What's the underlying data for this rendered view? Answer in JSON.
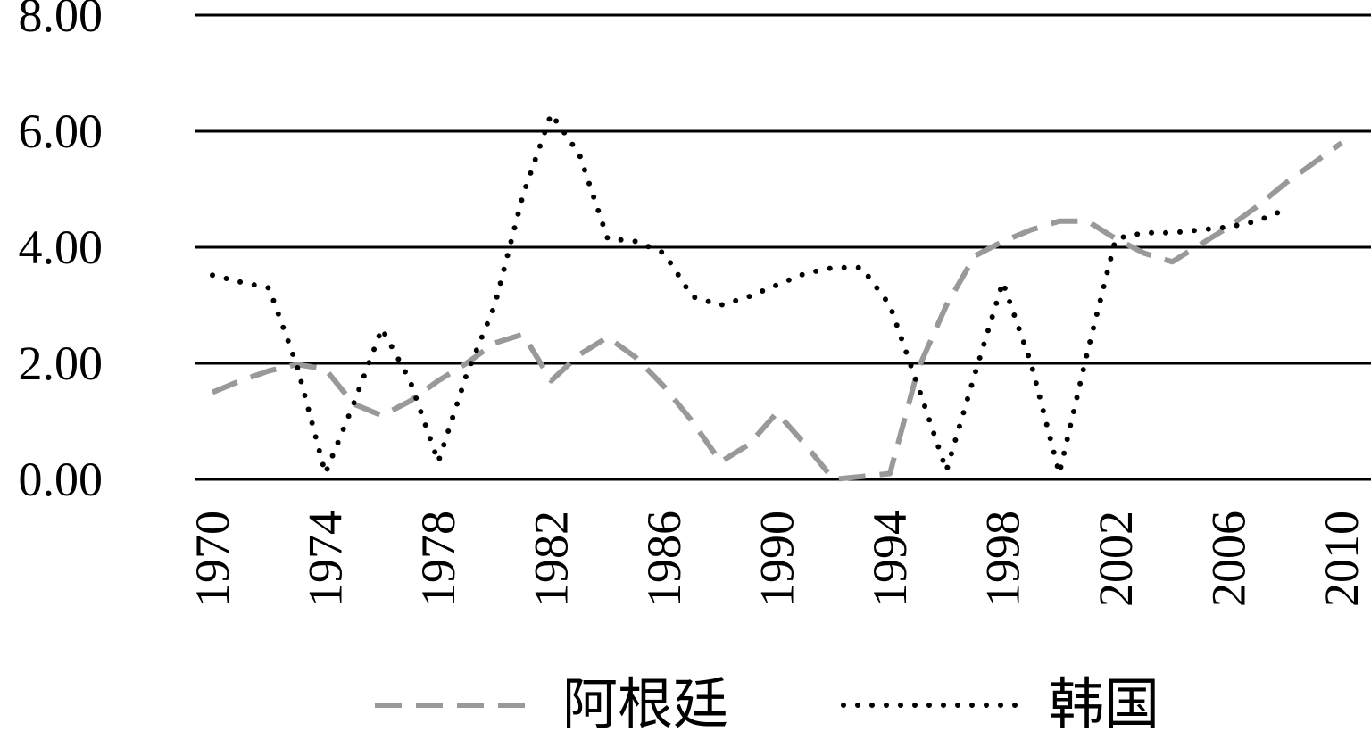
{
  "chart_data": {
    "type": "line",
    "x": [
      1970,
      1971,
      1972,
      1973,
      1974,
      1975,
      1976,
      1977,
      1978,
      1979,
      1980,
      1981,
      1982,
      1983,
      1984,
      1985,
      1986,
      1987,
      1988,
      1989,
      1990,
      1991,
      1992,
      1993,
      1994,
      1995,
      1996,
      1997,
      1998,
      1999,
      2000,
      2001,
      2002,
      2003,
      2004,
      2005,
      2006,
      2007,
      2008,
      2009,
      2010
    ],
    "series": [
      {
        "name": "阿根廷",
        "color": "#999999",
        "style": "dashed",
        "values": [
          1.5,
          1.7,
          1.87,
          1.98,
          1.9,
          1.3,
          1.1,
          1.35,
          1.7,
          2.0,
          2.35,
          2.5,
          1.7,
          2.15,
          2.45,
          2.1,
          1.6,
          1.0,
          0.3,
          0.6,
          1.15,
          0.6,
          0.0,
          0.05,
          0.1,
          1.9,
          3.0,
          3.85,
          4.1,
          4.3,
          4.45,
          4.45,
          4.15,
          3.9,
          3.75,
          4.05,
          4.35,
          4.7,
          5.1,
          5.45,
          5.8
        ]
      },
      {
        "name": "韩国",
        "color": "#000000",
        "style": "dotted",
        "values": [
          3.52,
          3.4,
          3.3,
          1.95,
          0.1,
          1.3,
          2.6,
          1.7,
          0.3,
          1.8,
          3.0,
          4.9,
          6.3,
          5.6,
          4.15,
          4.1,
          3.9,
          3.15,
          3.0,
          3.15,
          3.35,
          3.55,
          3.65,
          3.65,
          3.0,
          1.6,
          0.15,
          1.8,
          3.4,
          2.0,
          0.1,
          2.2,
          4.15,
          4.25,
          4.25,
          4.3,
          4.35,
          4.45,
          4.65,
          null,
          null
        ]
      }
    ],
    "xlim": [
      1970,
      2010
    ],
    "xticks": [
      1970,
      1974,
      1978,
      1982,
      1986,
      1990,
      1994,
      1998,
      2002,
      2006,
      2010
    ],
    "ylim": [
      0,
      8
    ],
    "yticks": [
      {
        "value": 0,
        "label": "0.00"
      },
      {
        "value": 2,
        "label": "2.00"
      },
      {
        "value": 4,
        "label": "4.00"
      },
      {
        "value": 6,
        "label": "6.00"
      },
      {
        "value": 8,
        "label": "8.00"
      }
    ],
    "grid": true,
    "legend": "bottom"
  }
}
